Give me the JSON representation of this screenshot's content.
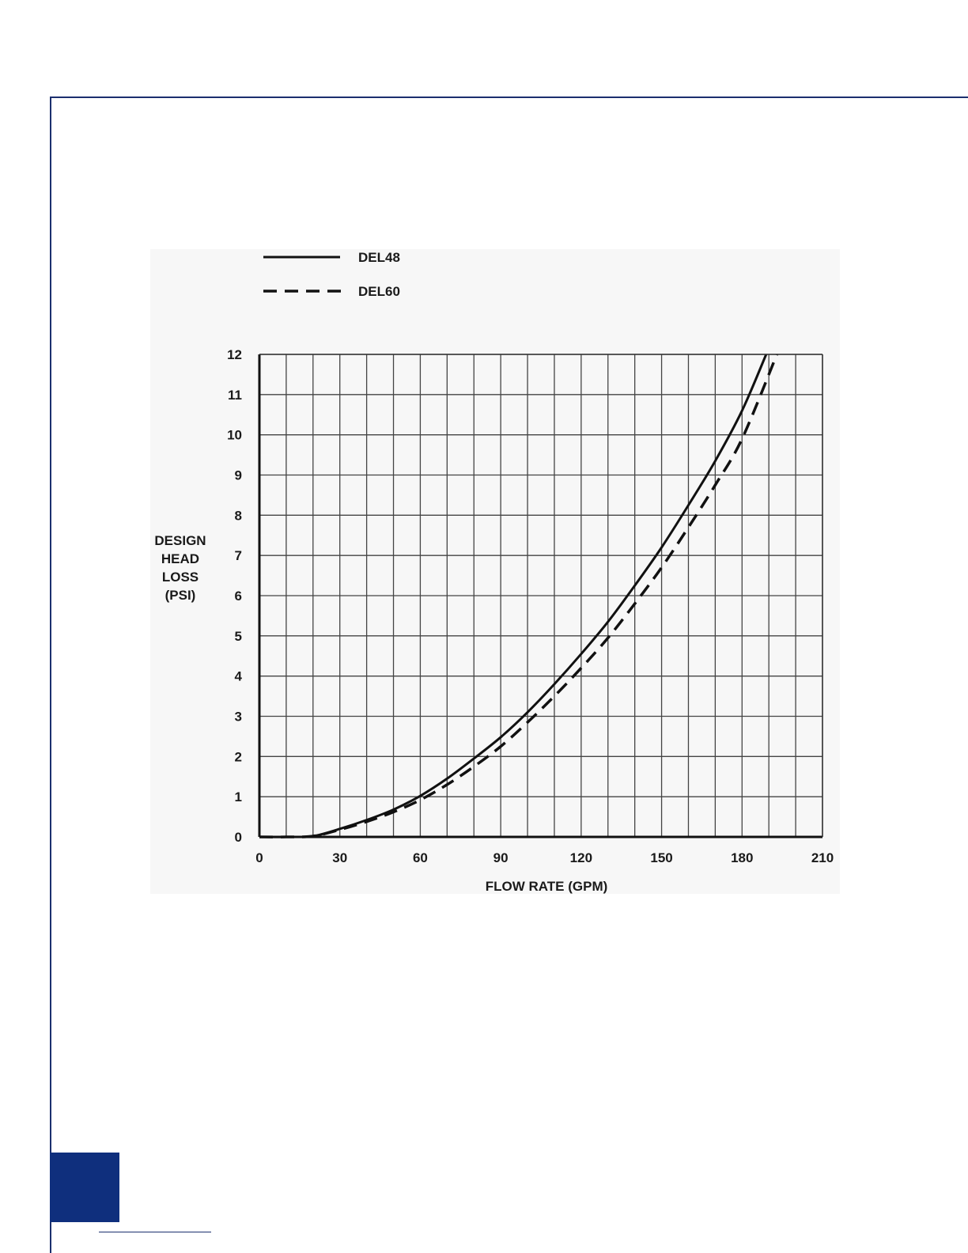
{
  "page": {
    "accent_color": "#0f2f7d",
    "frame_color": "#1b2f6e"
  },
  "chart_data": {
    "type": "line",
    "title": "",
    "xlabel": "FLOW RATE (GPM)",
    "ylabel_lines": [
      "DESIGN",
      "HEAD",
      "LOSS",
      "(PSI)"
    ],
    "xlim": [
      0,
      210
    ],
    "ylim": [
      0,
      12
    ],
    "x_ticks": [
      0,
      30,
      60,
      90,
      120,
      150,
      180,
      210
    ],
    "y_ticks": [
      0,
      1,
      2,
      3,
      4,
      5,
      6,
      7,
      8,
      9,
      10,
      11,
      12
    ],
    "x_tick_labels": [
      "0",
      "30",
      "60",
      "90",
      "120",
      "150",
      "180",
      "210"
    ],
    "y_tick_labels": [
      "0",
      "1",
      "2",
      "3",
      "4",
      "5",
      "6",
      "7",
      "8",
      "9",
      "10",
      "11",
      "12"
    ],
    "x_grid_step": 10,
    "grid": true,
    "legend_position": "top-left",
    "series": [
      {
        "name": "DEL48",
        "style": "solid",
        "x": [
          0,
          10,
          20,
          30,
          40,
          50,
          60,
          70,
          80,
          90,
          100,
          110,
          120,
          130,
          140,
          150,
          160,
          170,
          180,
          189
        ],
        "y": [
          0.0,
          0.0,
          0.02,
          0.2,
          0.42,
          0.68,
          1.02,
          1.45,
          1.95,
          2.48,
          3.1,
          3.8,
          4.55,
          5.35,
          6.25,
          7.2,
          8.25,
          9.35,
          10.6,
          12.0
        ]
      },
      {
        "name": "DEL60",
        "style": "dashed",
        "x": [
          0,
          10,
          20,
          30,
          40,
          50,
          60,
          70,
          80,
          90,
          100,
          110,
          120,
          130,
          140,
          150,
          160,
          170,
          180,
          193
        ],
        "y": [
          0.0,
          0.0,
          0.02,
          0.18,
          0.38,
          0.62,
          0.92,
          1.3,
          1.75,
          2.25,
          2.85,
          3.5,
          4.2,
          4.95,
          5.8,
          6.7,
          7.7,
          8.75,
          9.9,
          12.0
        ]
      }
    ]
  }
}
